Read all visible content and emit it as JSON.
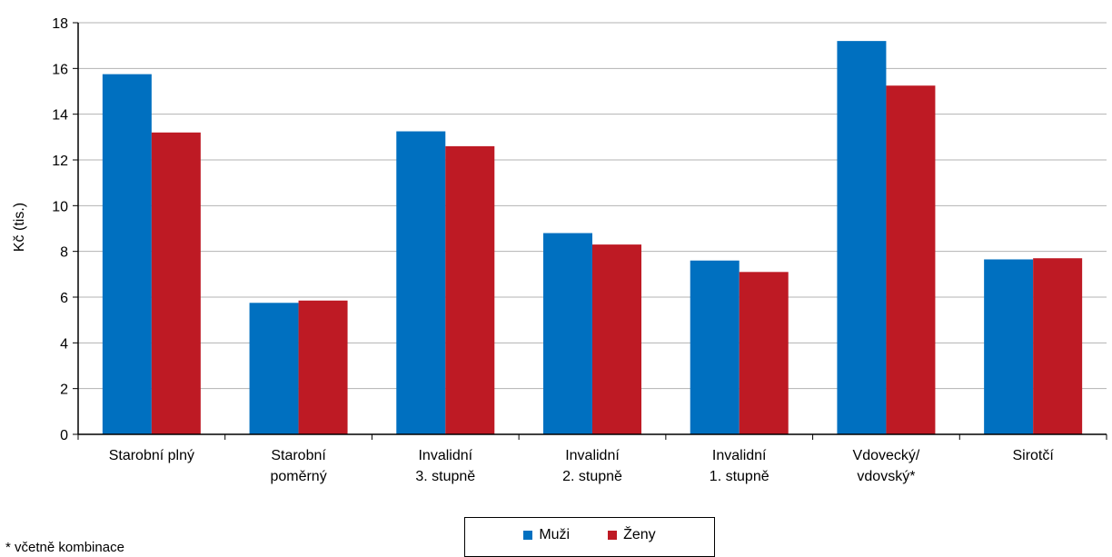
{
  "chart_data": {
    "type": "bar",
    "title": "",
    "xlabel": "",
    "ylabel": "Kč (tis.)",
    "ylim": [
      0,
      18
    ],
    "yticks": [
      0,
      2,
      4,
      6,
      8,
      10,
      12,
      14,
      16,
      18
    ],
    "grid": true,
    "legend_position": "bottom-center",
    "categories": [
      [
        "Starobní plný"
      ],
      [
        "Starobní",
        "poměrný"
      ],
      [
        "Invalidní",
        "3. stupně"
      ],
      [
        "Invalidní",
        "2. stupně"
      ],
      [
        "Invalidní",
        "1. stupně"
      ],
      [
        "Vdovecký/",
        "vdovský*"
      ],
      [
        "Sirotčí"
      ]
    ],
    "series": [
      {
        "name": "Muži",
        "color": "#0070c0",
        "values": [
          15.75,
          5.75,
          13.25,
          8.8,
          7.6,
          17.2,
          7.65
        ]
      },
      {
        "name": "Ženy",
        "color": "#be1a24",
        "values": [
          13.2,
          5.85,
          12.6,
          8.3,
          7.1,
          15.25,
          7.7
        ]
      }
    ],
    "footnote": "* včetně kombinace"
  }
}
